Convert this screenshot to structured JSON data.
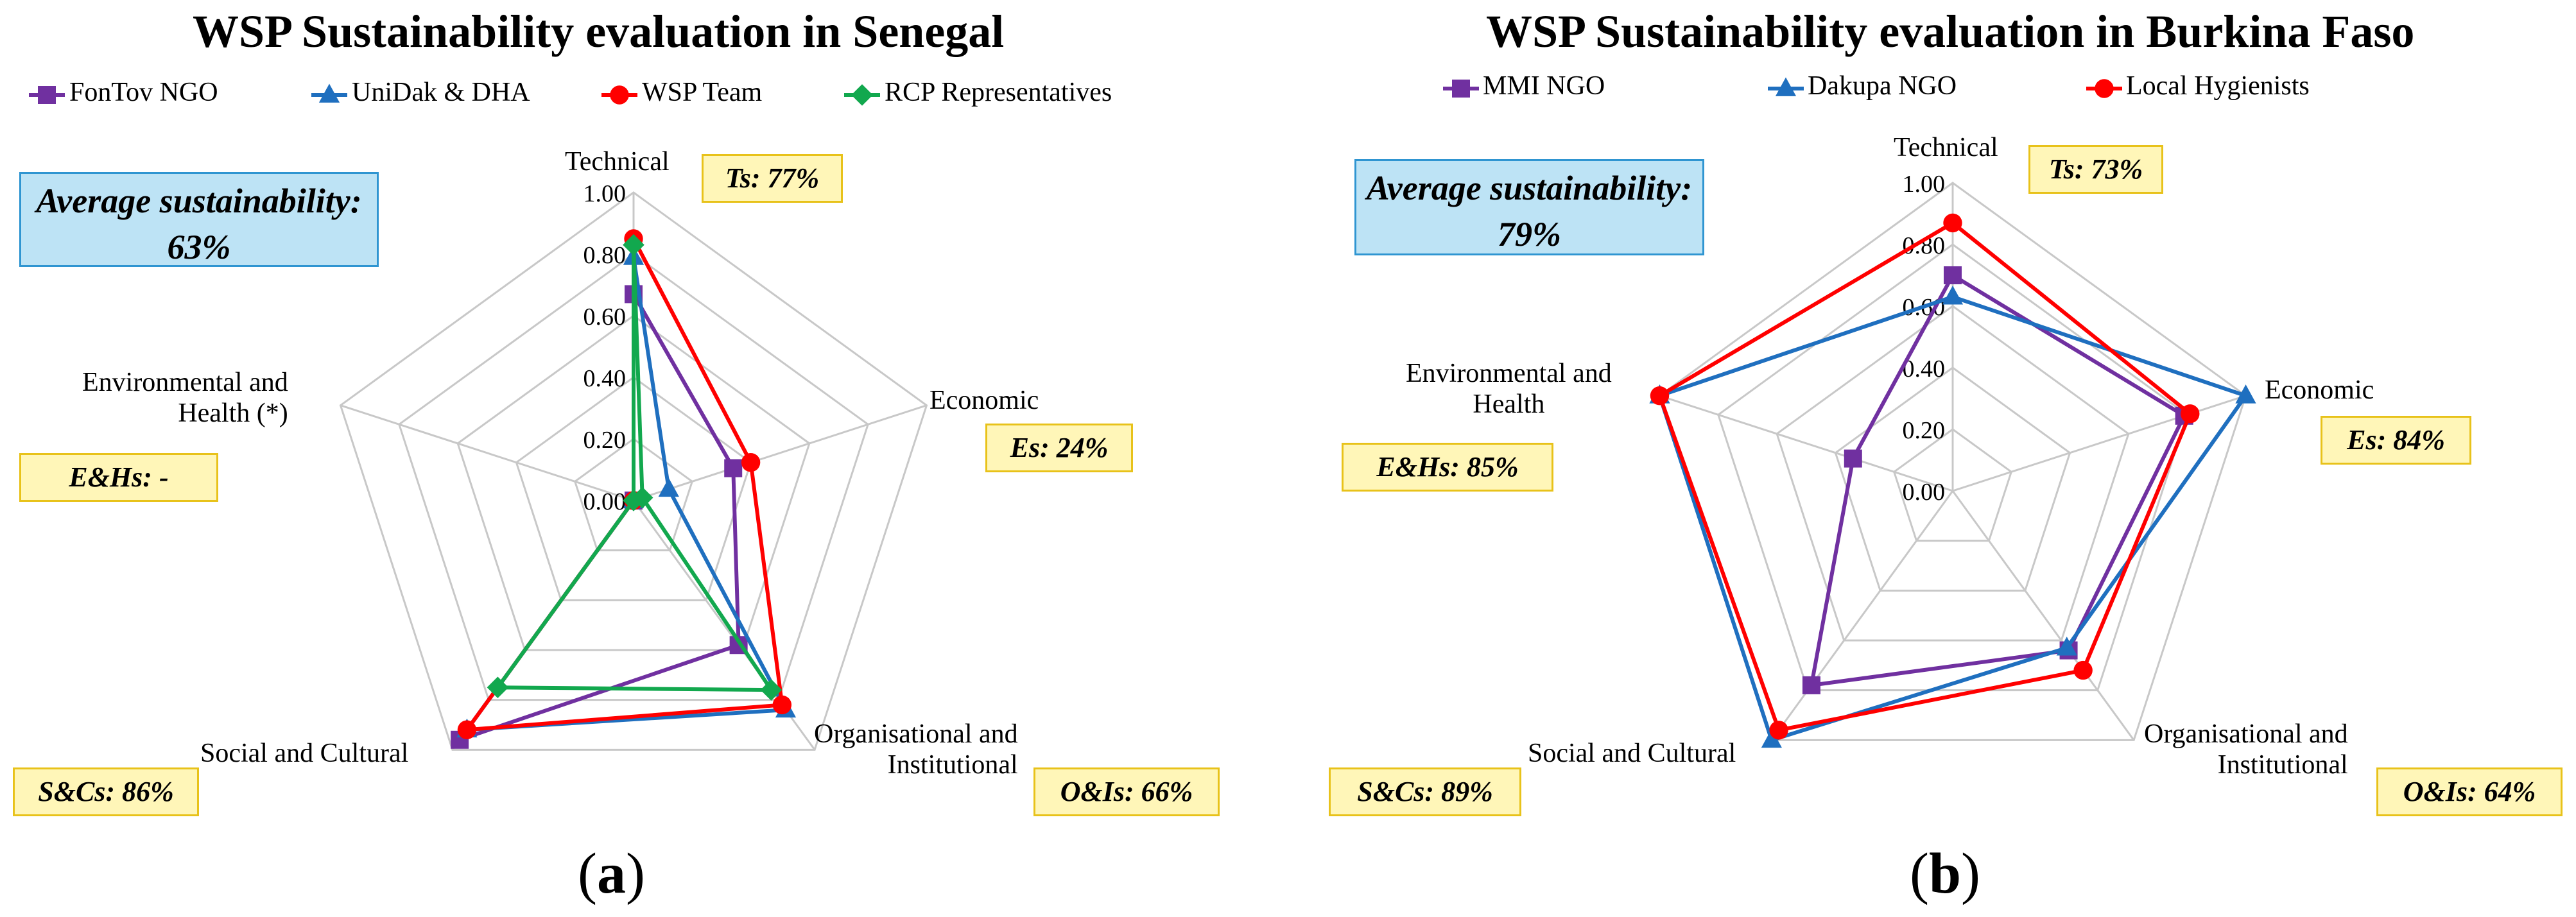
{
  "chart_data": [
    {
      "type": "radar",
      "panel_label": "a",
      "title": "WSP Sustainability evaluation in Senegal",
      "axes": [
        "Technical",
        "Economic",
        "Organisational and Institutional",
        "Social and Cultural",
        "Environmental and Health"
      ],
      "axis_label_lines": [
        [
          "Technical"
        ],
        [
          "Economic"
        ],
        [
          "Organisational and",
          "Institutional"
        ],
        [
          "Social and Cultural"
        ],
        [
          "Environmental and",
          "Health (*)"
        ]
      ],
      "ticks": [
        "0.00",
        "0.20",
        "0.40",
        "0.60",
        "0.80",
        "1.00"
      ],
      "rlim": [
        0,
        1
      ],
      "series": [
        {
          "name": "FonTov NGO",
          "color": "#7030a0",
          "marker": "square",
          "values": [
            0.67,
            0.34,
            0.58,
            0.96,
            0
          ]
        },
        {
          "name": "UniDak & DHA",
          "color": "#1f6fbf",
          "marker": "triangle",
          "values": [
            0.79,
            0.12,
            0.84,
            0.92,
            0
          ]
        },
        {
          "name": "WSP Team",
          "color": "#ff0000",
          "marker": "circle",
          "values": [
            0.85,
            0.4,
            0.82,
            0.92,
            0
          ]
        },
        {
          "name": "RCP Representatives",
          "color": "#12a84e",
          "marker": "diamond",
          "values": [
            0.83,
            0.03,
            0.76,
            0.75,
            0
          ]
        }
      ],
      "average_label": "Average sustainability:",
      "average_value": "63%",
      "scores": {
        "technical": "Ts:  77%",
        "economic": "Es:  24%",
        "organisational": "O&Is:  66%",
        "social": "S&Cs:  86%",
        "environmental": "E&Hs:  -"
      }
    },
    {
      "type": "radar",
      "panel_label": "b",
      "title": "WSP Sustainability evaluation in Burkina Faso",
      "axes": [
        "Technical",
        "Economic",
        "Organisational and Institutional",
        "Social and Cultural",
        "Environmental and Health"
      ],
      "axis_label_lines": [
        [
          "Technical"
        ],
        [
          "Economic"
        ],
        [
          "Organisational and",
          "Institutional"
        ],
        [
          "Social and Cultural"
        ],
        [
          "Environmental and",
          "Health"
        ]
      ],
      "ticks": [
        "0.00",
        "0.20",
        "0.40",
        "0.60",
        "0.80",
        "1.00"
      ],
      "rlim": [
        0,
        1
      ],
      "series": [
        {
          "name": "MMI NGO",
          "color": "#7030a0",
          "marker": "square",
          "values": [
            0.7,
            0.79,
            0.64,
            0.78,
            0.34
          ]
        },
        {
          "name": "Dakupa NGO",
          "color": "#1f6fbf",
          "marker": "triangle",
          "values": [
            0.63,
            1.0,
            0.63,
            1.0,
            1.0
          ]
        },
        {
          "name": "Local Hygienists",
          "color": "#ff0000",
          "marker": "circle",
          "values": [
            0.87,
            0.81,
            0.72,
            0.96,
            1.0
          ]
        }
      ],
      "average_label": "Average sustainability:",
      "average_value": "79%",
      "scores": {
        "technical": "Ts:  73%",
        "economic": "Es:  84%",
        "organisational": "O&Is:  64%",
        "social": "S&Cs:  89%",
        "environmental": "E&Hs:  85%"
      }
    }
  ]
}
